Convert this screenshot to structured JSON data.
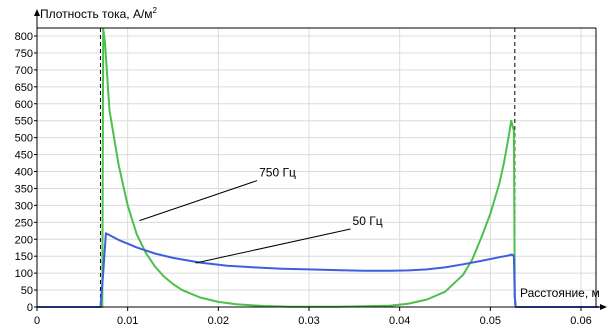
{
  "chart_data": {
    "type": "line",
    "ylabel": "Плотность тока, А/м",
    "ylabel_sup": "2",
    "xlabel": "Расстояние, м",
    "xlim": [
      0,
      0.062
    ],
    "ylim": [
      0,
      820
    ],
    "x_ticks": [
      0,
      0.01,
      0.02,
      0.03,
      0.04,
      0.05,
      0.06
    ],
    "x_tick_labels": [
      "0",
      "0.01",
      "0.02",
      "0.03",
      "0.04",
      "0.05",
      "0.06"
    ],
    "y_ticks": [
      0,
      50,
      100,
      150,
      200,
      250,
      300,
      350,
      400,
      450,
      500,
      550,
      600,
      650,
      700,
      750,
      800
    ],
    "y_tick_labels": [
      "0",
      "50",
      "100",
      "150",
      "200",
      "250",
      "300",
      "350",
      "400",
      "450",
      "500",
      "550",
      "600",
      "650",
      "700",
      "750",
      "800"
    ],
    "grid": true,
    "boundaries_x": [
      0.007,
      0.0527
    ],
    "series": [
      {
        "name": "750 Гц",
        "color": "#4cc04c",
        "x": [
          0,
          0.007,
          0.0072,
          0.0073,
          0.0075,
          0.008,
          0.009,
          0.01,
          0.011,
          0.012,
          0.013,
          0.014,
          0.015,
          0.016,
          0.018,
          0.02,
          0.022,
          0.025,
          0.028,
          0.03,
          0.033,
          0.036,
          0.039,
          0.041,
          0.043,
          0.045,
          0.047,
          0.048,
          0.049,
          0.05,
          0.051,
          0.0515,
          0.052,
          0.0523,
          0.0526,
          0.0527,
          0.0528,
          0.062
        ],
        "values": [
          0,
          0,
          0,
          830,
          780,
          580,
          420,
          300,
          215,
          160,
          120,
          90,
          68,
          50,
          28,
          15,
          8,
          3,
          1,
          1,
          1,
          2,
          4,
          10,
          22,
          45,
          95,
          140,
          205,
          275,
          365,
          425,
          500,
          550,
          520,
          30,
          0,
          0
        ]
      },
      {
        "name": "50 Гц",
        "color": "#3f5ee0",
        "x": [
          0,
          0.007,
          0.0073,
          0.0076,
          0.009,
          0.011,
          0.013,
          0.015,
          0.018,
          0.021,
          0.024,
          0.027,
          0.03,
          0.033,
          0.036,
          0.039,
          0.041,
          0.043,
          0.045,
          0.047,
          0.049,
          0.051,
          0.052,
          0.0524,
          0.0526,
          0.0527,
          0.0528,
          0.062
        ],
        "values": [
          0,
          0,
          100,
          218,
          198,
          176,
          158,
          145,
          131,
          122,
          117,
          113,
          111,
          109,
          107,
          107,
          108,
          111,
          117,
          126,
          136,
          147,
          152,
          155,
          150,
          30,
          0,
          0
        ]
      }
    ],
    "annotations": [
      {
        "text": "750 Гц",
        "series": "750 Гц",
        "x": 0.0113,
        "y": 255,
        "label_x": 0.0245,
        "label_y": 385
      },
      {
        "text": "50 Гц",
        "series": "50 Гц",
        "x": 0.0175,
        "y": 130,
        "label_x": 0.0348,
        "label_y": 242
      }
    ]
  }
}
